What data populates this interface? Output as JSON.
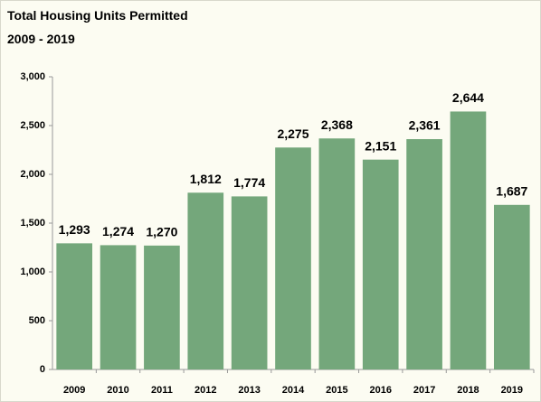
{
  "chart_data": {
    "type": "bar",
    "title": "Total Housing Units Permitted",
    "subtitle": "2009 - 2019",
    "categories": [
      "2009",
      "2010",
      "2011",
      "2012",
      "2013",
      "2014",
      "2015",
      "2016",
      "2017",
      "2018",
      "2019"
    ],
    "values": [
      1293,
      1274,
      1270,
      1812,
      1774,
      2275,
      2368,
      2151,
      2361,
      2644,
      1687
    ],
    "value_labels": [
      "1,293",
      "1,274",
      "1,270",
      "1,812",
      "1,774",
      "2,275",
      "2,368",
      "2,151",
      "2,361",
      "2,644",
      "1,687"
    ],
    "color": "#74a77b",
    "ylim": [
      0,
      3000
    ],
    "yticks": [
      0,
      500,
      {
        "value": 1000,
        "label": "1,000"
      },
      {
        "value": 1500,
        "label": "1,500"
      },
      {
        "value": 2000,
        "label": "2,000"
      },
      {
        "value": 2500,
        "label": "2,500"
      },
      {
        "value": 3000,
        "label": "3,000"
      }
    ],
    "grid": false
  }
}
